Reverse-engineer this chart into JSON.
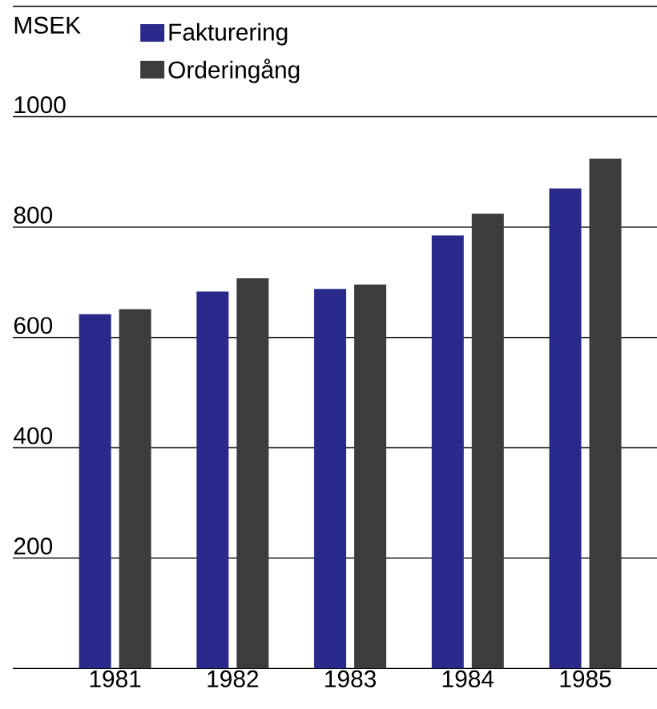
{
  "chart_data": {
    "type": "bar",
    "ylabel": "MSEK",
    "categories": [
      "1981",
      "1982",
      "1983",
      "1984",
      "1985"
    ],
    "series": [
      {
        "name": "Fakturering",
        "color": "#2a2a8c",
        "values": [
          642,
          683,
          688,
          785,
          870
        ]
      },
      {
        "name": "Orderingång",
        "color": "#3c3c3c",
        "values": [
          651,
          707,
          696,
          824,
          924
        ]
      }
    ],
    "ylim": [
      0,
      1200
    ],
    "yticks": [
      {
        "value": 0,
        "label": null
      },
      200,
      400,
      600,
      800,
      1000,
      {
        "value": 1200,
        "label": null
      }
    ],
    "grid": "y",
    "legend": "top left"
  }
}
